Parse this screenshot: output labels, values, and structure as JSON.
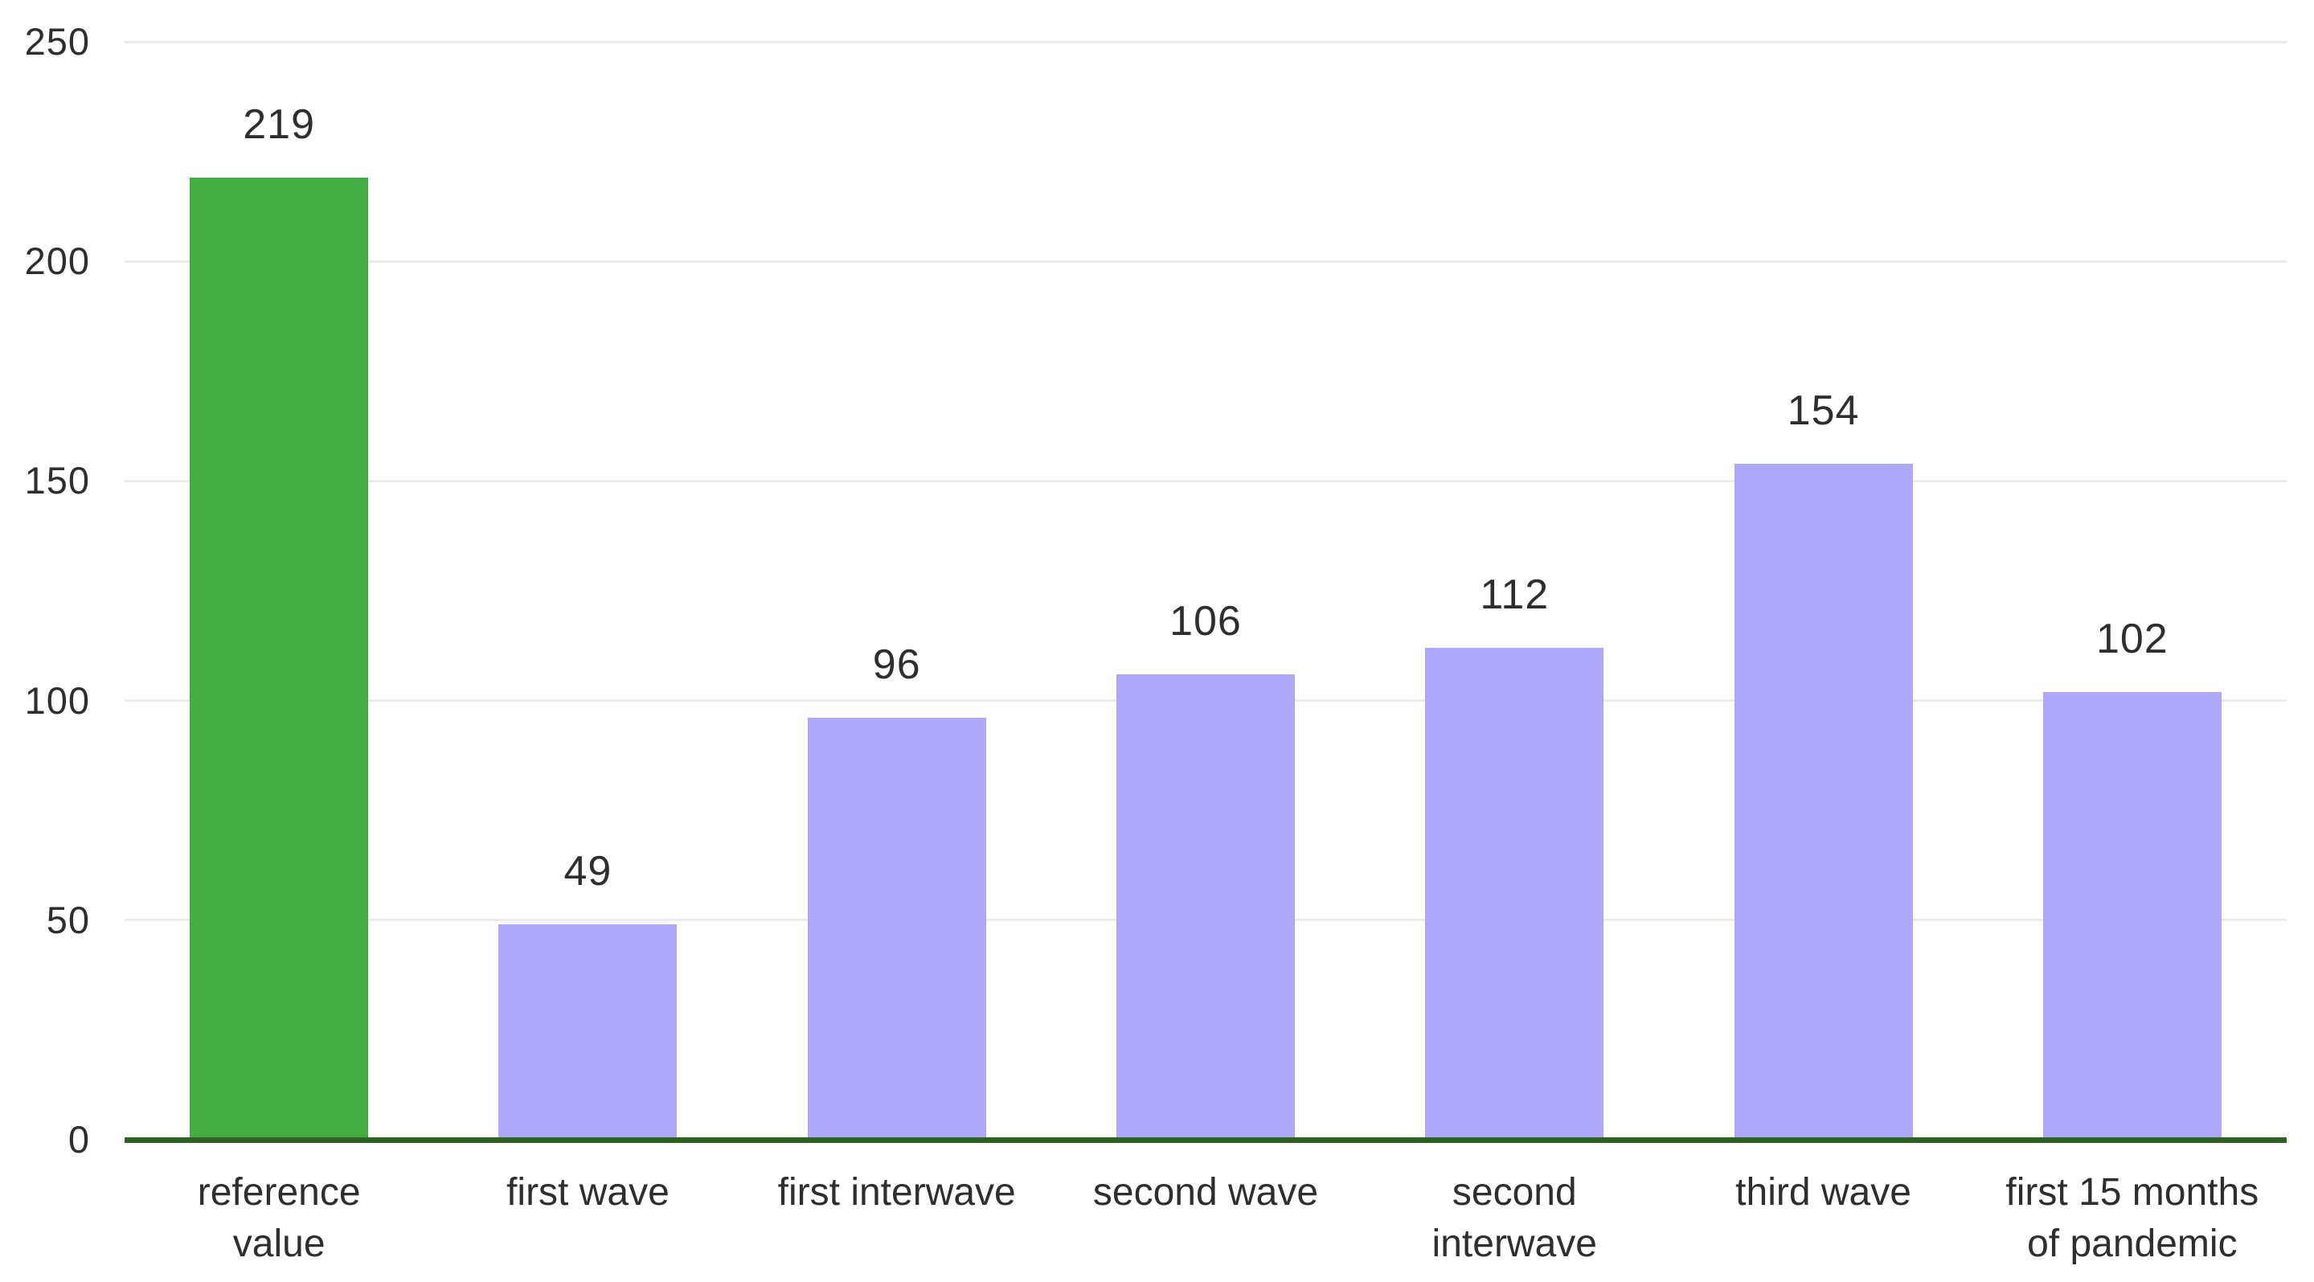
{
  "chart_data": {
    "type": "bar",
    "title": "",
    "xlabel": "",
    "ylabel": "",
    "categories": [
      "reference value",
      "first wave",
      "first interwave",
      "second wave",
      "second interwave",
      "third wave",
      "first 15 months of pandemic"
    ],
    "category_lines": [
      [
        "reference",
        "value"
      ],
      [
        "first wave"
      ],
      [
        "first interwave"
      ],
      [
        "second wave"
      ],
      [
        "second",
        "interwave"
      ],
      [
        "third wave"
      ],
      [
        "first 15 months",
        "of pandemic"
      ]
    ],
    "values": [
      219,
      49,
      96,
      106,
      112,
      154,
      102
    ],
    "bar_colors": [
      "#44ac41",
      "#aea8fa",
      "#aea8fa",
      "#aea8fa",
      "#aea8fa",
      "#aea8fa",
      "#aea8fa"
    ],
    "ylim": [
      0,
      250
    ],
    "yticks": [
      0,
      50,
      100,
      150,
      200,
      250
    ],
    "grid": true,
    "legend": false,
    "colors": {
      "reference_bar": "#44ac41",
      "wave_bar": "#aea8fa",
      "axis_line": "#2d6222",
      "gridline": "#ececec",
      "text": "#2e2e2e",
      "background": "#ffffff"
    }
  }
}
